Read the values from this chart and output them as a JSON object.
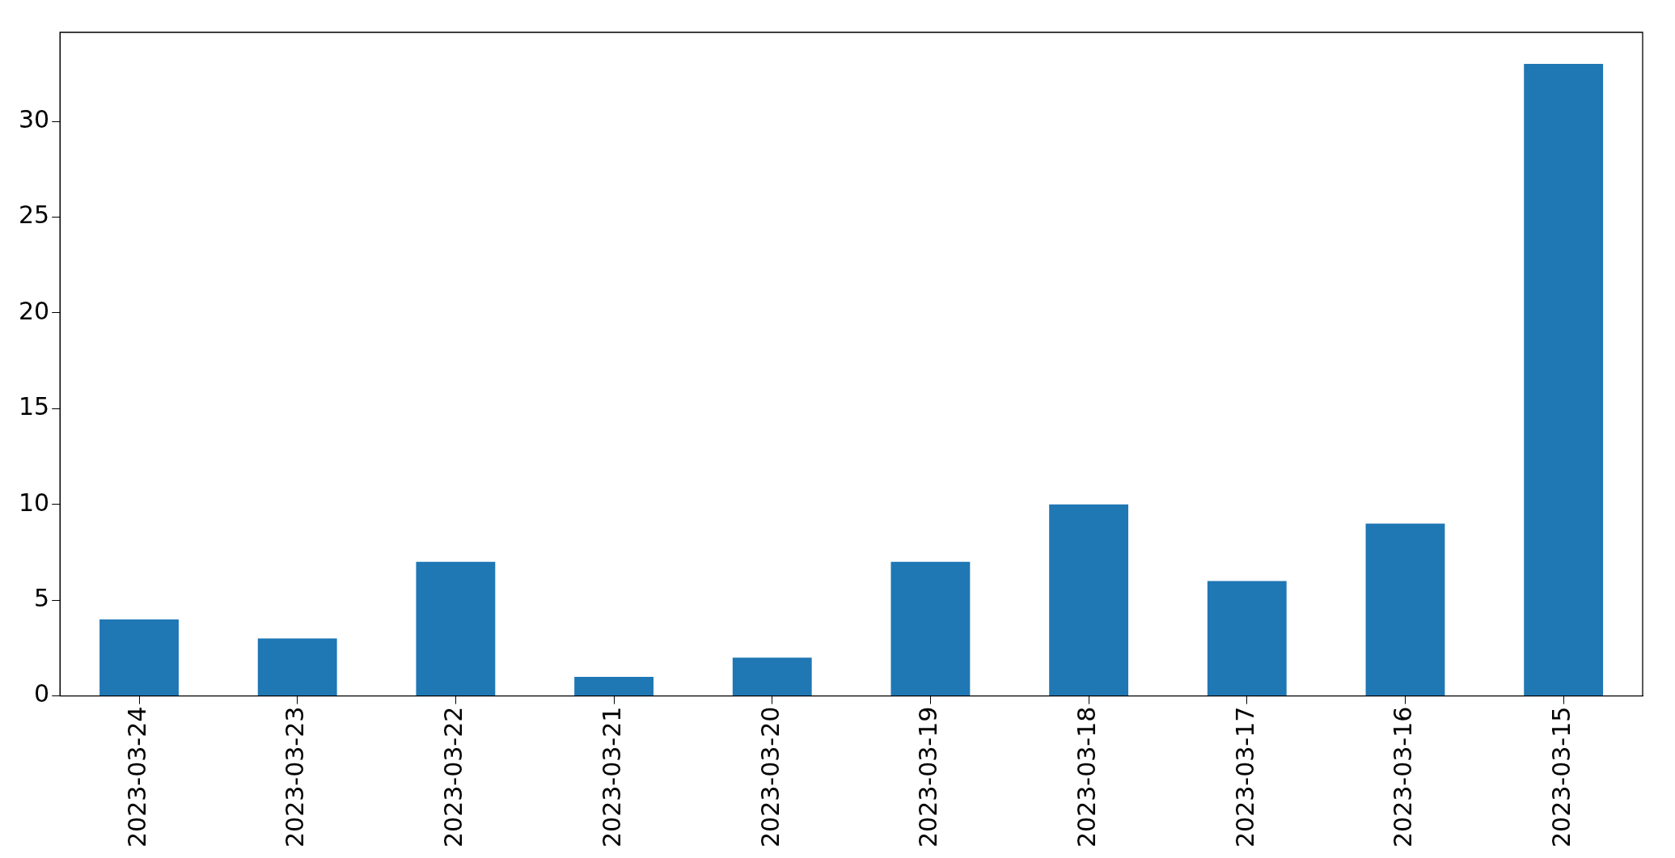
{
  "chart_data": {
    "type": "bar",
    "categories": [
      "2023-03-24",
      "2023-03-23",
      "2023-03-22",
      "2023-03-21",
      "2023-03-20",
      "2023-03-19",
      "2023-03-18",
      "2023-03-17",
      "2023-03-16",
      "2023-03-15"
    ],
    "values": [
      4,
      3,
      7,
      1,
      2,
      7,
      10,
      6,
      9,
      33
    ],
    "color": "#1f77b4",
    "ylim": [
      0,
      34.65
    ],
    "yticks": [
      0,
      5,
      10,
      15,
      20,
      25,
      30
    ],
    "grid": false,
    "legend": false
  }
}
